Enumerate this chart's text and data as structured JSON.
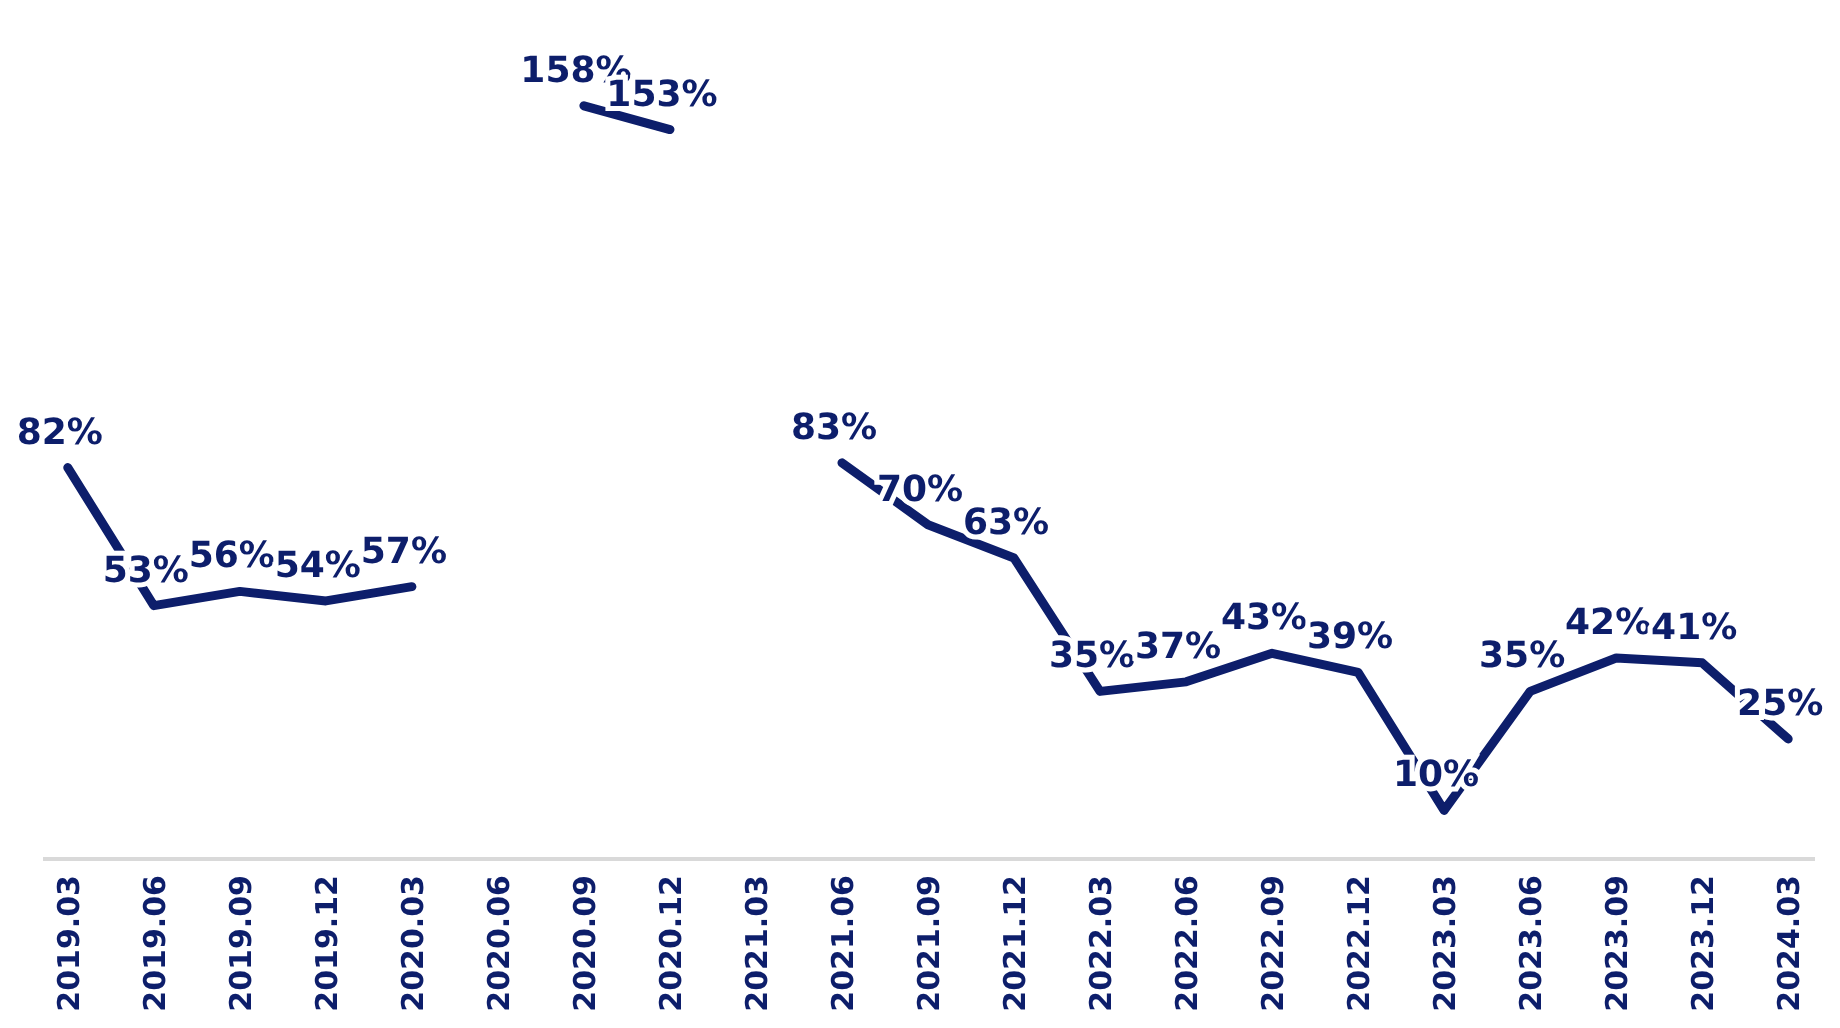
{
  "chart_data": {
    "type": "line",
    "categories": [
      "2019.03",
      "2019.06",
      "2019.09",
      "2019.12",
      "2020.03",
      "2020.06",
      "2020.09",
      "2020.12",
      "2021.03",
      "2021.06",
      "2021.09",
      "2021.12",
      "2022.03",
      "2022.06",
      "2022.09",
      "2022.12",
      "2023.03",
      "2023.06",
      "2023.09",
      "2023.12",
      "2024.03"
    ],
    "series": [
      {
        "color": "#0d1e6b",
        "values": [
          82,
          53,
          56,
          54,
          57,
          null,
          158,
          153,
          null,
          83,
          70,
          63,
          35,
          37,
          43,
          39,
          10,
          35,
          42,
          41,
          25
        ],
        "value_labels": [
          "82%",
          "53%",
          "56%",
          "54%",
          "57%",
          null,
          "158%",
          "153%",
          null,
          "83%",
          "70%",
          "63%",
          "35%",
          "37%",
          "43%",
          "39%",
          "10%",
          "35%",
          "42%",
          "41%",
          "25%"
        ]
      }
    ],
    "grid": false,
    "legend": false
  }
}
